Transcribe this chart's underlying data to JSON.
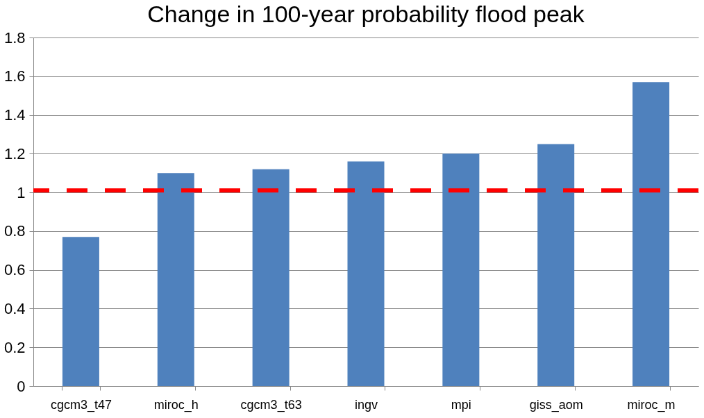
{
  "chart_data": {
    "type": "bar",
    "title": "Change in 100-year probability flood peak",
    "categories": [
      "cgcm3_t47",
      "miroc_h",
      "cgcm3_t63",
      "ingv",
      "mpi",
      "giss_aom",
      "miroc_m"
    ],
    "series": [
      {
        "color": "#4f81bd",
        "values": [
          0.77,
          1.1,
          1.12,
          1.16,
          1.2,
          1.25,
          1.57
        ]
      }
    ],
    "ylim": [
      0,
      1.8
    ],
    "yticks": [
      0,
      0.2,
      0.4,
      0.6,
      0.8,
      1,
      1.2,
      1.4,
      1.6,
      1.8
    ],
    "grid": "y",
    "ref_lines": [
      {
        "axis": "y",
        "value": 1.01,
        "color": "#ff0000",
        "line_style": "dashed"
      }
    ]
  }
}
